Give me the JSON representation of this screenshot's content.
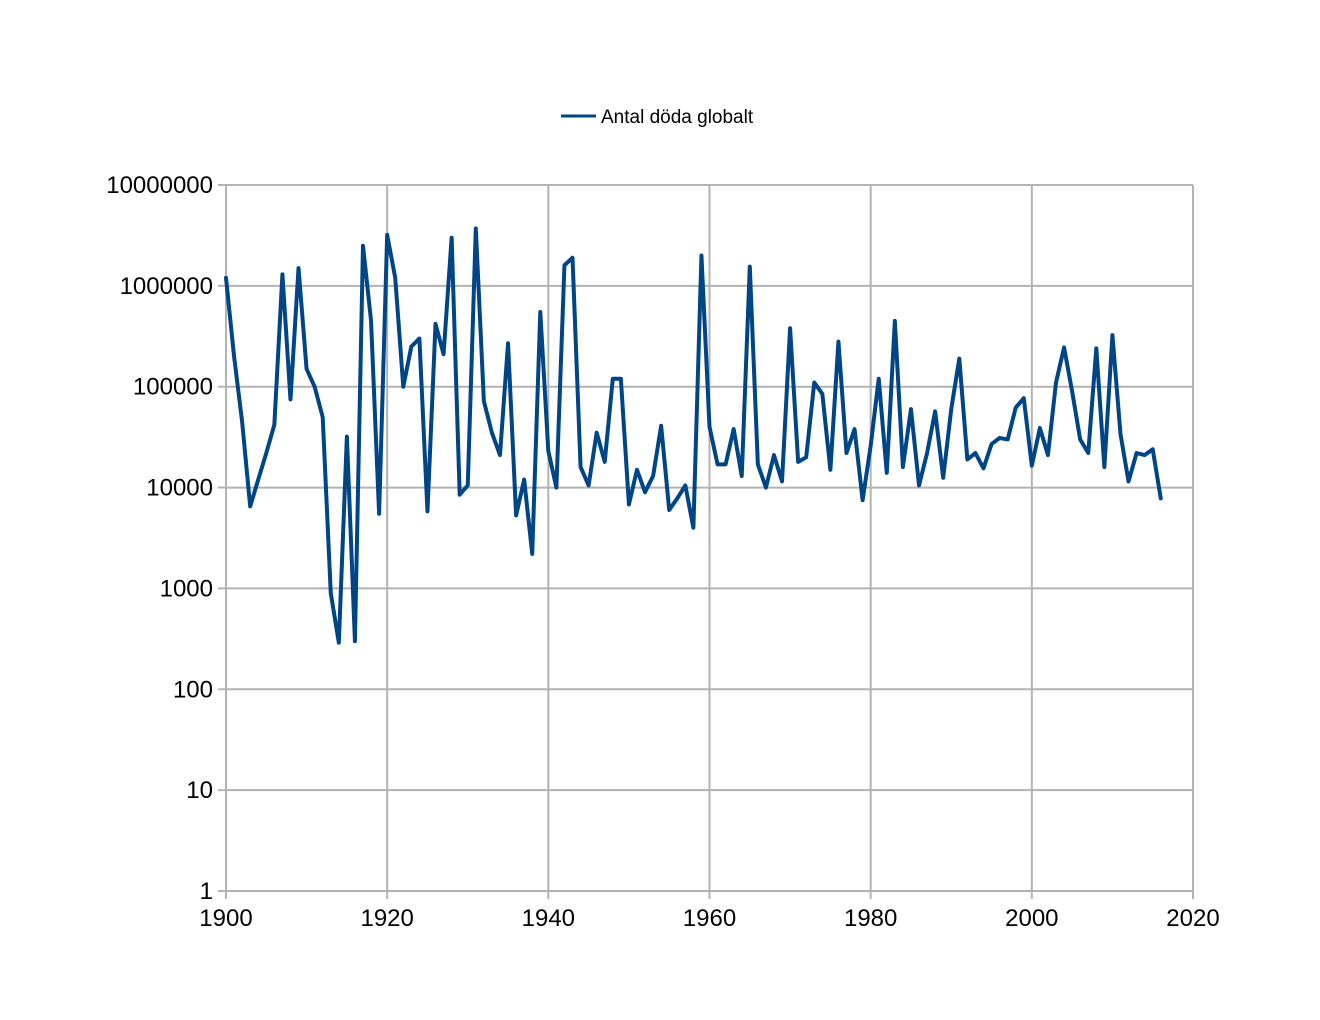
{
  "chart_data": {
    "type": "line",
    "title": "",
    "xlabel": "",
    "ylabel": "",
    "y_scale": "log",
    "xlim": [
      1900,
      2020
    ],
    "ylim": [
      1,
      10000000
    ],
    "x_ticks": [
      1900,
      1920,
      1940,
      1960,
      1980,
      2000,
      2020
    ],
    "x_tick_labels": [
      "1900",
      "1920",
      "1940",
      "1960",
      "1980",
      "2000",
      "2020"
    ],
    "y_ticks": [
      1,
      10,
      100,
      1000,
      10000,
      100000,
      1000000,
      10000000
    ],
    "y_tick_labels": [
      "1",
      "10",
      "100",
      "1000",
      "10000",
      "100000",
      "1000000",
      "10000000"
    ],
    "grid": true,
    "legend_position": "top-center",
    "series": [
      {
        "name": "Antal döda globalt",
        "color": "#004586",
        "x": [
          1900,
          1901,
          1902,
          1903,
          1904,
          1905,
          1906,
          1907,
          1908,
          1909,
          1910,
          1911,
          1912,
          1913,
          1914,
          1915,
          1916,
          1917,
          1918,
          1919,
          1920,
          1921,
          1922,
          1923,
          1924,
          1925,
          1926,
          1927,
          1928,
          1929,
          1930,
          1931,
          1932,
          1933,
          1934,
          1935,
          1936,
          1937,
          1938,
          1939,
          1940,
          1941,
          1942,
          1943,
          1944,
          1945,
          1946,
          1947,
          1948,
          1949,
          1950,
          1951,
          1952,
          1953,
          1954,
          1955,
          1956,
          1957,
          1958,
          1959,
          1960,
          1961,
          1962,
          1963,
          1964,
          1965,
          1966,
          1967,
          1968,
          1969,
          1970,
          1971,
          1972,
          1973,
          1974,
          1975,
          1976,
          1977,
          1978,
          1979,
          1980,
          1981,
          1982,
          1983,
          1984,
          1985,
          1986,
          1987,
          1988,
          1989,
          1990,
          1991,
          1992,
          1993,
          1994,
          1995,
          1996,
          1997,
          1998,
          1999,
          2000,
          2001,
          2002,
          2003,
          2004,
          2005,
          2006,
          2007,
          2008,
          2009,
          2010,
          2011,
          2012,
          2013,
          2014,
          2015,
          2016
        ],
        "y": [
          1200000,
          200000,
          45000,
          6500,
          12000,
          22000,
          42000,
          1300000,
          75000,
          1500000,
          150000,
          100000,
          50000,
          900,
          290,
          32000,
          300,
          2500000,
          450000,
          5500,
          3200000,
          1200000,
          100000,
          250000,
          300000,
          5800,
          420000,
          210000,
          3000000,
          8500,
          10500,
          3700000,
          72000,
          35000,
          21000,
          270000,
          5300,
          12000,
          2200,
          550000,
          23000,
          10000,
          1600000,
          1900000,
          16000,
          10500,
          35000,
          18000,
          120000,
          120000,
          6800,
          15000,
          9000,
          13000,
          41000,
          6000,
          7800,
          10500,
          4000,
          2000000,
          40000,
          17000,
          17000,
          38000,
          13000,
          1550000,
          17000,
          10000,
          21000,
          11500,
          380000,
          18000,
          20000,
          110000,
          85000,
          15000,
          280000,
          22000,
          38000,
          7500,
          26000,
          120000,
          14000,
          450000,
          16000,
          60000,
          10500,
          22000,
          57000,
          12500,
          60000,
          190000,
          19000,
          22000,
          15500,
          27000,
          31000,
          30000,
          62000,
          77000,
          16500,
          39000,
          21000,
          110000,
          245000,
          90000,
          30000,
          22000,
          240000,
          16000,
          325000,
          34000,
          11500,
          22000,
          21000,
          24000,
          7800
        ]
      }
    ]
  }
}
